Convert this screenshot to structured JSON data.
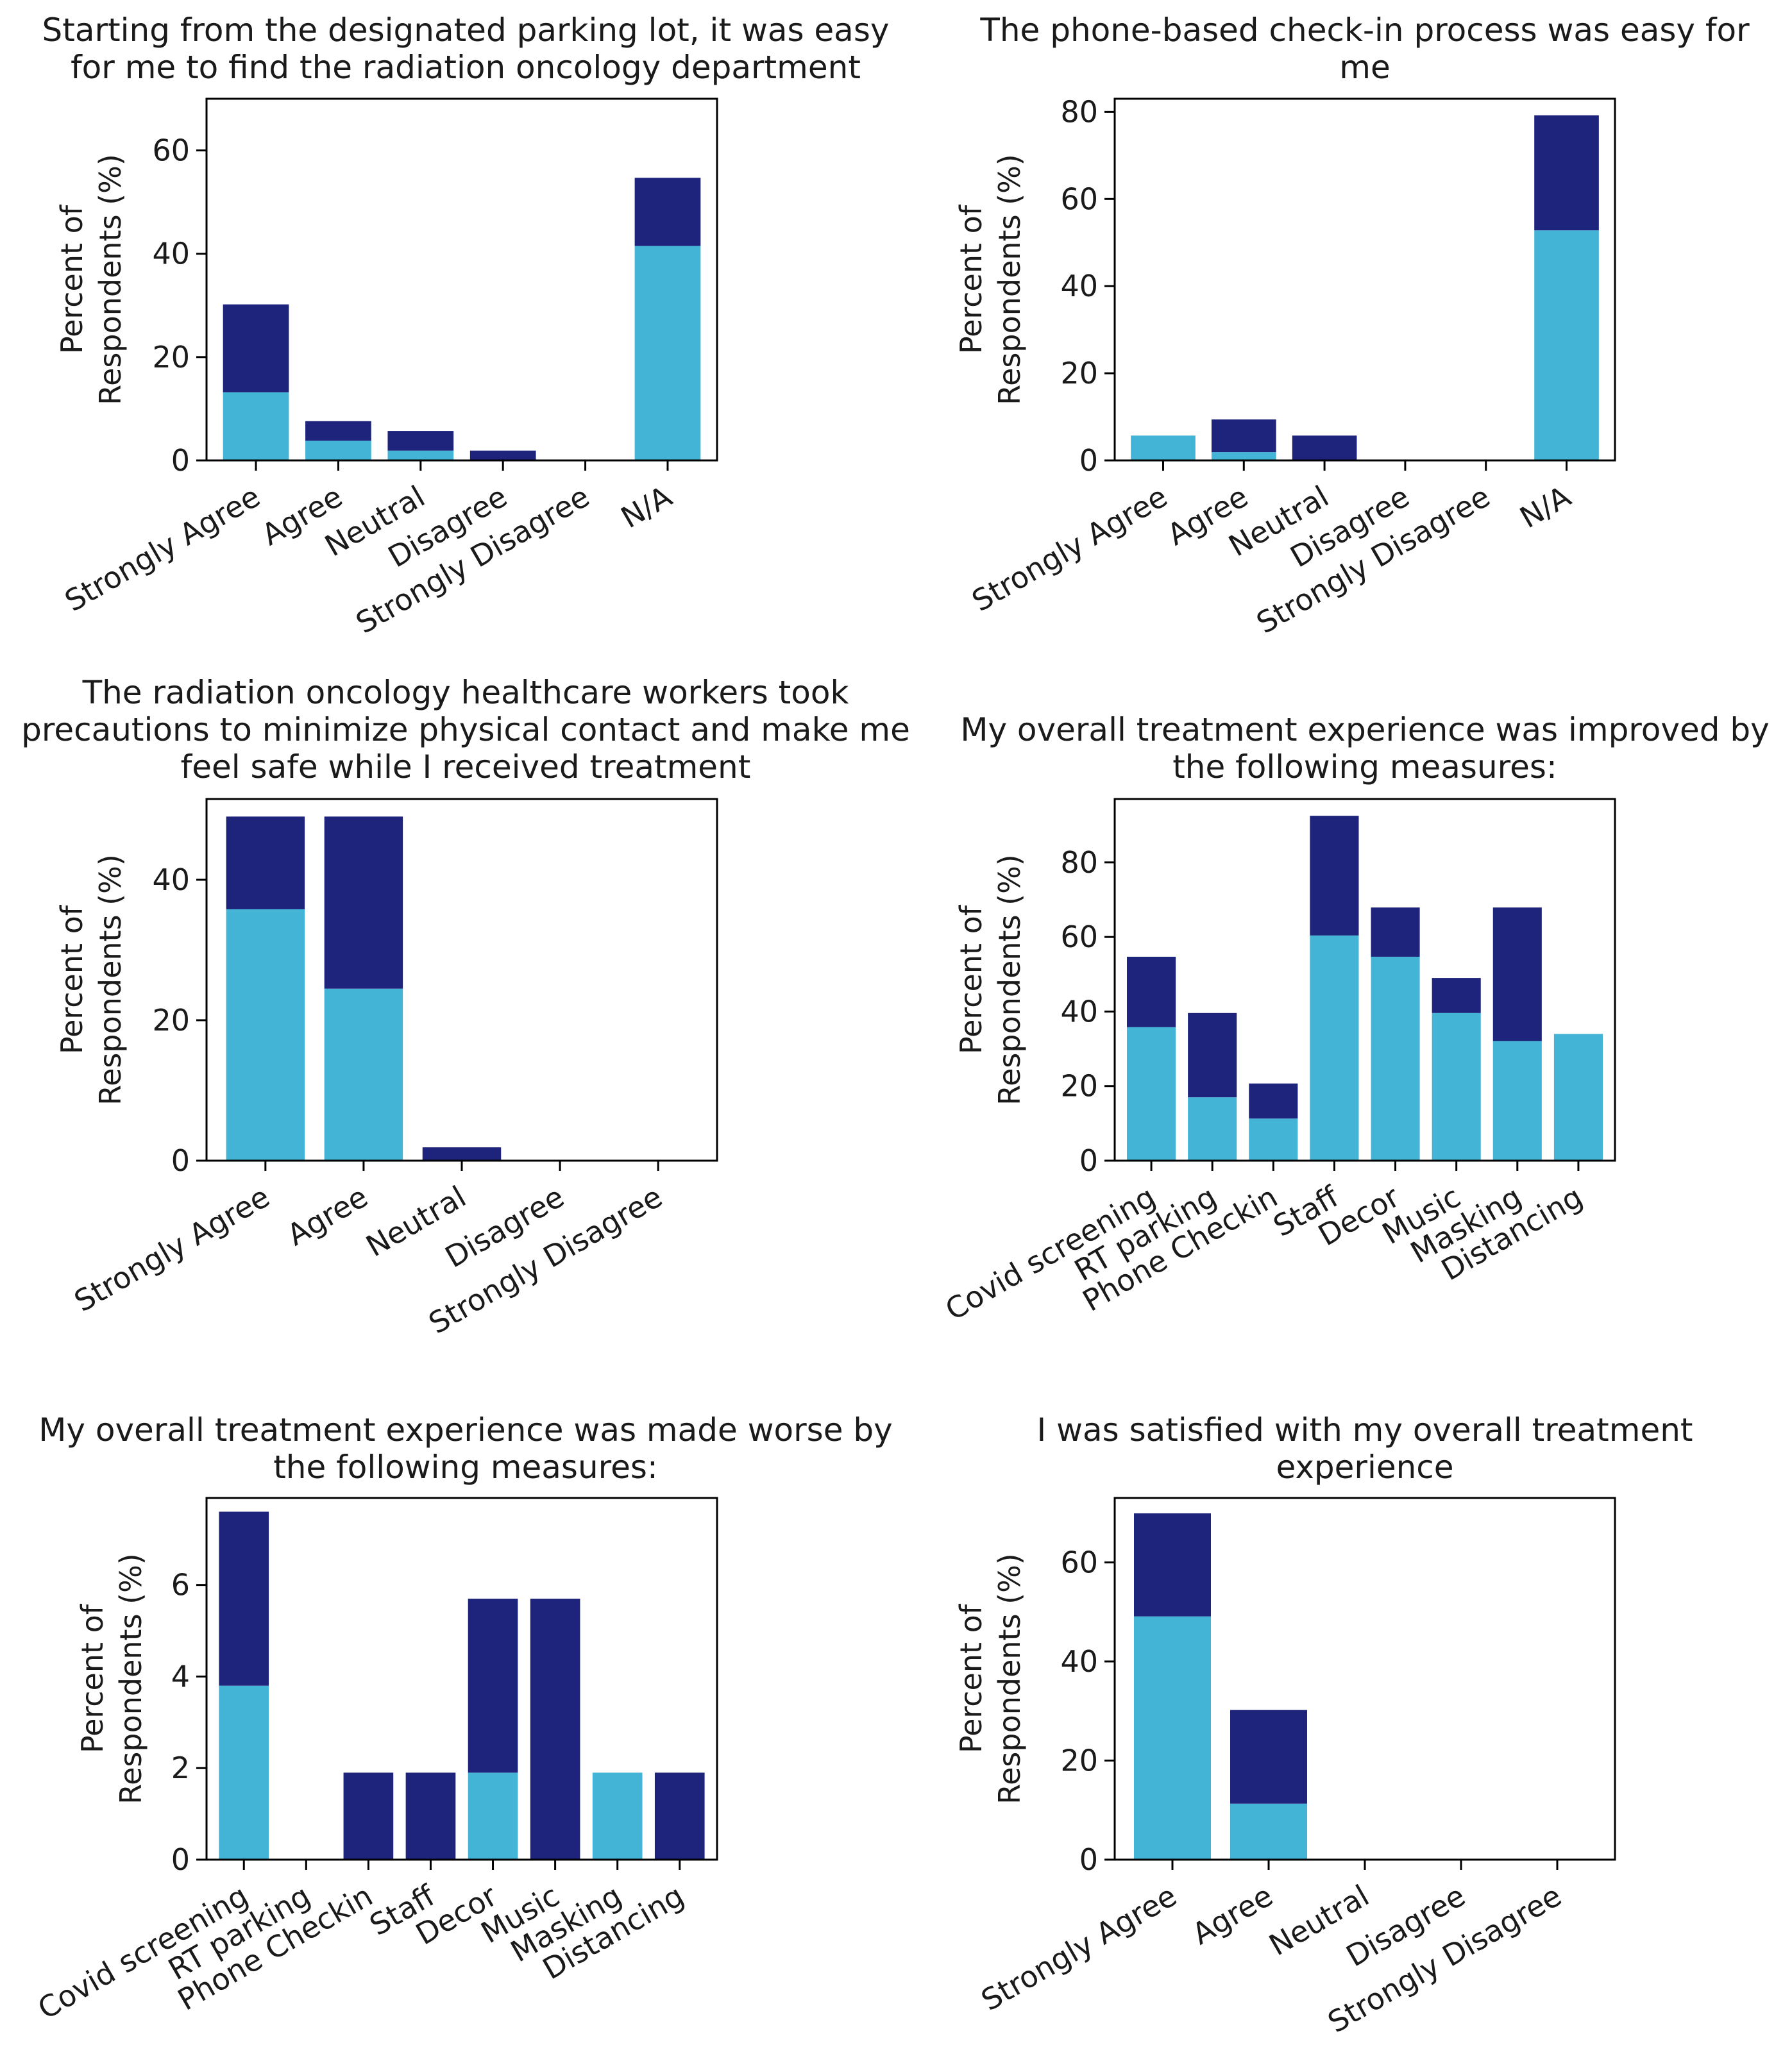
{
  "colors": {
    "light": "#43b3d6",
    "dark": "#1e237c"
  },
  "chart_data": [
    {
      "type": "bar",
      "stacked": true,
      "title": [
        "Starting from the designated parking lot, it was easy",
        "for me to find the radiation oncology department"
      ],
      "ylabel": [
        "Percent of",
        "Respondents (%)"
      ],
      "categories": [
        "Strongly Agree",
        "Agree",
        "Neutral",
        "Disagree",
        "Strongly Disagree",
        "N/A"
      ],
      "series": [
        {
          "name": "light",
          "values": [
            13.2,
            3.8,
            1.9,
            0,
            0,
            41.5
          ]
        },
        {
          "name": "dark",
          "values": [
            17.0,
            3.8,
            3.8,
            1.9,
            0,
            13.2
          ]
        }
      ],
      "ylim": [
        0,
        70
      ],
      "yticks": [
        0,
        20,
        40,
        60
      ]
    },
    {
      "type": "bar",
      "stacked": true,
      "title": [
        "The phone-based check-in process was easy for",
        "me"
      ],
      "ylabel": [
        "Percent of",
        "Respondents (%)"
      ],
      "categories": [
        "Strongly Agree",
        "Agree",
        "Neutral",
        "Disagree",
        "Strongly Disagree",
        "N/A"
      ],
      "series": [
        {
          "name": "light",
          "values": [
            5.7,
            1.9,
            0,
            0,
            0,
            52.8
          ]
        },
        {
          "name": "dark",
          "values": [
            0,
            7.5,
            5.7,
            0,
            0,
            26.4
          ]
        }
      ],
      "ylim": [
        0,
        83
      ],
      "yticks": [
        0,
        20,
        40,
        60,
        80
      ]
    },
    {
      "type": "bar",
      "stacked": true,
      "title": [
        "The radiation oncology healthcare workers took",
        "precautions to minimize physical contact and make me",
        "feel safe while I received treatment"
      ],
      "ylabel": [
        "Percent of",
        "Respondents (%)"
      ],
      "categories": [
        "Strongly Agree",
        "Agree",
        "Neutral",
        "Disagree",
        "Strongly Disagree"
      ],
      "series": [
        {
          "name": "light",
          "values": [
            35.8,
            24.5,
            0,
            0,
            0
          ]
        },
        {
          "name": "dark",
          "values": [
            13.2,
            24.5,
            1.9,
            0,
            0
          ]
        }
      ],
      "ylim": [
        0,
        51.5
      ],
      "yticks": [
        0,
        20,
        40
      ]
    },
    {
      "type": "bar",
      "stacked": true,
      "title": [
        "My overall treatment experience was improved by",
        "the following measures:"
      ],
      "ylabel": [
        "Percent of",
        "Respondents (%)"
      ],
      "categories": [
        "Covid screening",
        "RT parking",
        "Phone Checkin",
        "Staff",
        "Decor",
        "Music",
        "Masking",
        "Distancing"
      ],
      "series": [
        {
          "name": "light",
          "values": [
            35.8,
            17.0,
            11.3,
            60.4,
            54.7,
            39.6,
            32.1,
            34.0
          ]
        },
        {
          "name": "dark",
          "values": [
            18.9,
            22.6,
            9.4,
            32.1,
            13.2,
            9.4,
            35.8,
            0
          ]
        }
      ],
      "ylim": [
        0,
        97
      ],
      "yticks": [
        0,
        20,
        40,
        60,
        80
      ]
    },
    {
      "type": "bar",
      "stacked": true,
      "title": [
        "My overall treatment experience was made worse by",
        "the following measures:"
      ],
      "ylabel": [
        "Percent of",
        "Respondents (%)"
      ],
      "categories": [
        "Covid screening",
        "RT parking",
        "Phone Checkin",
        "Staff",
        "Decor",
        "Music",
        "Masking",
        "Distancing"
      ],
      "series": [
        {
          "name": "light",
          "values": [
            3.8,
            0,
            0,
            0,
            1.9,
            0,
            1.9,
            0
          ]
        },
        {
          "name": "dark",
          "values": [
            3.8,
            0,
            1.9,
            1.9,
            3.8,
            5.7,
            0,
            1.9
          ]
        }
      ],
      "ylim": [
        0,
        7.9
      ],
      "yticks": [
        0,
        2,
        4,
        6
      ]
    },
    {
      "type": "bar",
      "stacked": true,
      "title": [
        "I was satisfied with my overall treatment",
        "experience"
      ],
      "ylabel": [
        "Percent of",
        "Respondents (%)"
      ],
      "categories": [
        "Strongly Agree",
        "Agree",
        "Neutral",
        "Disagree",
        "Strongly Disagree"
      ],
      "series": [
        {
          "name": "light",
          "values": [
            49.1,
            11.3,
            0,
            0,
            0
          ]
        },
        {
          "name": "dark",
          "values": [
            20.8,
            18.9,
            0,
            0,
            0
          ]
        }
      ],
      "ylim": [
        0,
        73
      ],
      "yticks": [
        0,
        20,
        40,
        60
      ]
    }
  ]
}
